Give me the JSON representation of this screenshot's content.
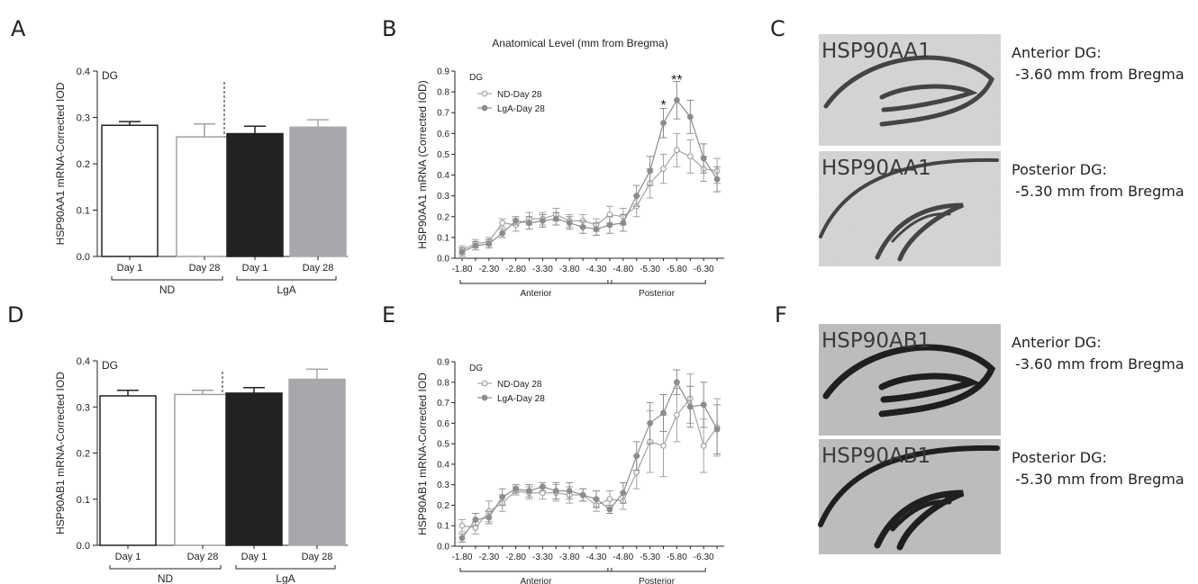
{
  "panels": {
    "A": "A",
    "B": "B",
    "C": "C",
    "D": "D",
    "E": "E",
    "F": "F"
  },
  "chart_data": [
    {
      "id": "A",
      "type": "bar",
      "region_label": "DG",
      "ylabel": "HSP90AA1 mRNA-Corrected IOD",
      "ylim": [
        0,
        0.4
      ],
      "yticks": [
        "0.0",
        "0.1",
        "0.2",
        "0.3",
        "0.4"
      ],
      "categories": [
        "Day 1",
        "Day 28",
        "Day 1",
        "Day 28"
      ],
      "values": [
        0.283,
        0.258,
        0.265,
        0.279
      ],
      "errors": [
        0.008,
        0.028,
        0.016,
        0.016
      ],
      "fill_colors": [
        "#ffffff",
        "#ffffff",
        "#222222",
        "#a6a8ab"
      ],
      "edge_colors": [
        "#222222",
        "#a0a0a0",
        "#222222",
        "#a6a8ab"
      ],
      "groups": [
        {
          "label": "ND",
          "from": 0,
          "to": 1
        },
        {
          "label": "LgA",
          "from": 2,
          "to": 3
        }
      ]
    },
    {
      "id": "B",
      "type": "line",
      "title": "Anatomical Level (mm from Bregma)",
      "region_label": "DG",
      "ylabel": "HSP90AA1 mRNA (Corrected IOD)",
      "ylim": [
        0,
        0.9
      ],
      "yticks": [
        "0.0",
        "0.1",
        "0.2",
        "0.3",
        "0.4",
        "0.5",
        "0.6",
        "0.7",
        "0.8",
        "0.9"
      ],
      "x": [
        -1.8,
        -2.05,
        -2.3,
        -2.55,
        -2.8,
        -3.05,
        -3.3,
        -3.55,
        -3.8,
        -4.05,
        -4.3,
        -4.55,
        -4.8,
        -5.05,
        -5.3,
        -5.55,
        -5.8,
        -6.05,
        -6.3,
        -6.55
      ],
      "xticks": [
        "-1.80",
        "-2.30",
        "-2.80",
        "-3.30",
        "-3.80",
        "-4.30",
        "-4.80",
        "-5.30",
        "-5.80",
        "-6.30"
      ],
      "series": [
        {
          "name": "ND-Day 28",
          "values": [
            0.04,
            0.07,
            0.08,
            0.17,
            0.16,
            0.19,
            0.19,
            0.21,
            0.18,
            0.18,
            0.16,
            0.21,
            0.2,
            0.25,
            0.36,
            0.43,
            0.52,
            0.49,
            0.43,
            0.42
          ],
          "errors": [
            0.02,
            0.02,
            0.02,
            0.02,
            0.03,
            0.03,
            0.03,
            0.03,
            0.03,
            0.03,
            0.03,
            0.04,
            0.04,
            0.05,
            0.07,
            0.07,
            0.08,
            0.08,
            0.06,
            0.06
          ]
        },
        {
          "name": "LgA-Day 28",
          "values": [
            0.03,
            0.06,
            0.07,
            0.12,
            0.18,
            0.17,
            0.18,
            0.19,
            0.17,
            0.15,
            0.14,
            0.16,
            0.17,
            0.3,
            0.42,
            0.65,
            0.76,
            0.68,
            0.48,
            0.38
          ],
          "errors": [
            0.02,
            0.02,
            0.02,
            0.02,
            0.02,
            0.03,
            0.03,
            0.03,
            0.03,
            0.03,
            0.03,
            0.04,
            0.04,
            0.05,
            0.07,
            0.07,
            0.09,
            0.08,
            0.07,
            0.06
          ]
        }
      ],
      "annotations": [
        {
          "text": "*",
          "x": -5.55,
          "y": 0.74
        },
        {
          "text": "**",
          "x": -5.8,
          "y": 0.86
        }
      ],
      "regions": [
        {
          "label": "Anterior",
          "from": -1.8,
          "to": -4.55
        },
        {
          "label": "Posterior",
          "from": -4.55,
          "to": -6.3
        }
      ]
    },
    {
      "id": "D",
      "type": "bar",
      "region_label": "DG",
      "ylabel": "HSP90AB1 mRNA-Corrected IOD",
      "ylim": [
        0,
        0.4
      ],
      "yticks": [
        "0.0",
        "0.1",
        "0.2",
        "0.3",
        "0.4"
      ],
      "categories": [
        "Day 1",
        "Day 28",
        "Day 1",
        "Day 28"
      ],
      "values": [
        0.324,
        0.327,
        0.33,
        0.36
      ],
      "errors": [
        0.012,
        0.009,
        0.012,
        0.022
      ],
      "fill_colors": [
        "#ffffff",
        "#ffffff",
        "#222222",
        "#a6a8ab"
      ],
      "edge_colors": [
        "#222222",
        "#a0a0a0",
        "#222222",
        "#a6a8ab"
      ],
      "groups": [
        {
          "label": "ND",
          "from": 0,
          "to": 1
        },
        {
          "label": "LgA",
          "from": 2,
          "to": 3
        }
      ]
    },
    {
      "id": "E",
      "type": "line",
      "region_label": "DG",
      "ylabel": "HSP90AB1 mRNA-Corrected IOD",
      "ylim": [
        0,
        0.9
      ],
      "yticks": [
        "0.0",
        "0.1",
        "0.2",
        "0.3",
        "0.4",
        "0.5",
        "0.6",
        "0.7",
        "0.8",
        "0.9"
      ],
      "x": [
        -1.8,
        -2.05,
        -2.3,
        -2.55,
        -2.8,
        -3.05,
        -3.3,
        -3.55,
        -3.8,
        -4.05,
        -4.3,
        -4.55,
        -4.8,
        -5.05,
        -5.3,
        -5.55,
        -5.8,
        -6.05,
        -6.3,
        -6.55
      ],
      "xticks": [
        "-1.80",
        "-2.30",
        "-2.80",
        "-3.30",
        "-3.80",
        "-4.30",
        "-4.80",
        "-5.30",
        "-5.80",
        "-6.30"
      ],
      "series": [
        {
          "name": "ND-Day 28",
          "values": [
            0.1,
            0.09,
            0.17,
            0.21,
            0.27,
            0.26,
            0.26,
            0.26,
            0.25,
            0.25,
            0.2,
            0.23,
            0.22,
            0.36,
            0.51,
            0.49,
            0.64,
            0.72,
            0.49,
            0.58
          ],
          "errors": [
            0.03,
            0.03,
            0.05,
            0.04,
            0.02,
            0.03,
            0.03,
            0.04,
            0.04,
            0.03,
            0.03,
            0.04,
            0.04,
            0.08,
            0.15,
            0.15,
            0.13,
            0.12,
            0.13,
            0.14
          ]
        },
        {
          "name": "LgA-Day 28",
          "values": [
            0.04,
            0.13,
            0.14,
            0.24,
            0.28,
            0.27,
            0.29,
            0.27,
            0.27,
            0.25,
            0.23,
            0.18,
            0.26,
            0.44,
            0.6,
            0.65,
            0.8,
            0.68,
            0.69,
            0.57
          ],
          "errors": [
            0.02,
            0.03,
            0.03,
            0.04,
            0.02,
            0.03,
            0.02,
            0.04,
            0.04,
            0.03,
            0.04,
            0.02,
            0.05,
            0.07,
            0.1,
            0.09,
            0.06,
            0.1,
            0.11,
            0.12
          ]
        }
      ],
      "regions": [
        {
          "label": "Anterior",
          "from": -1.8,
          "to": -4.55
        },
        {
          "label": "Posterior",
          "from": -4.55,
          "to": -6.3
        }
      ]
    }
  ],
  "images": [
    {
      "id": "C-anterior",
      "label": "HSP90AA1",
      "caption_line1": "Anterior DG:",
      "caption_line2": "-3.60 mm from Bregma",
      "style": "light"
    },
    {
      "id": "C-posterior",
      "label": "HSP90AA1",
      "caption_line1": "Posterior DG:",
      "caption_line2": "-5.30 mm from Bregma",
      "style": "posterior-light"
    },
    {
      "id": "F-anterior",
      "label": "HSP90AB1",
      "caption_line1": "Anterior DG:",
      "caption_line2": "-3.60 mm from Bregma",
      "style": "dark"
    },
    {
      "id": "F-posterior",
      "label": "HSP90AB1",
      "caption_line1": "Posterior DG:",
      "caption_line2": "-5.30 mm from Bregma",
      "style": "posterior-dark"
    }
  ]
}
